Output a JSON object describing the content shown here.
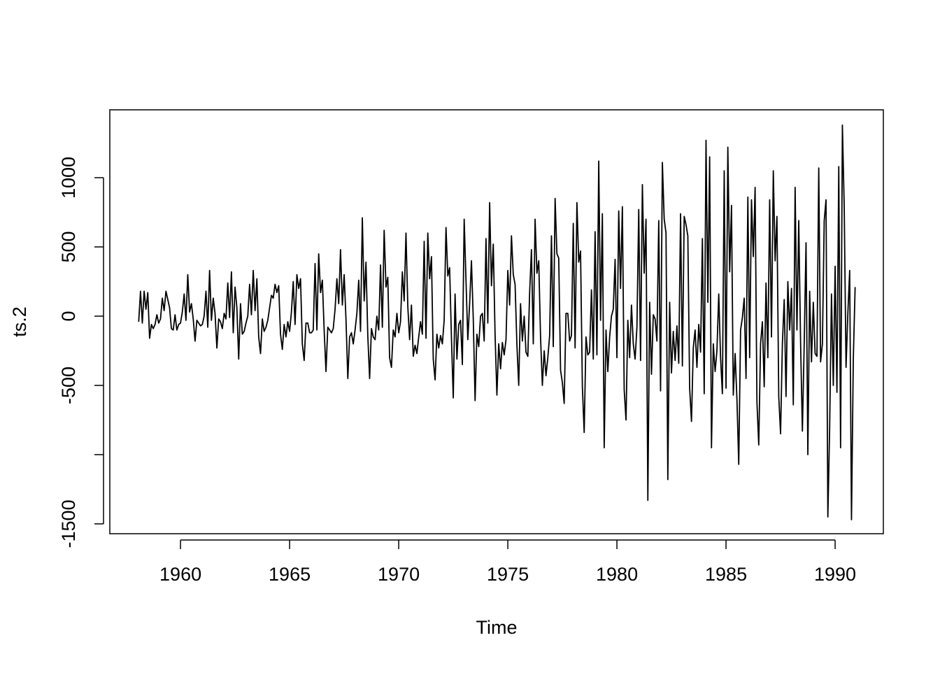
{
  "chart_data": {
    "type": "line",
    "x_label": "Time",
    "y_label": "ts.2",
    "color": "#000000",
    "xlim": [
      1956.76,
      1992.21
    ],
    "xticks": [
      1960,
      1965,
      1970,
      1975,
      1980,
      1985,
      1990
    ],
    "ylim": [
      -1571,
      1490
    ],
    "yticks": [
      -1500,
      {
        "value": -1000,
        "label": null
      },
      -500,
      0,
      500,
      1000
    ],
    "x": [
      1958.083,
      1958.167,
      1958.25,
      1958.333,
      1958.417,
      1958.5,
      1958.583,
      1958.667,
      1958.75,
      1958.833,
      1958.917,
      1959,
      1959.083,
      1959.167,
      1959.25,
      1959.333,
      1959.417,
      1959.5,
      1959.583,
      1959.667,
      1959.75,
      1959.833,
      1959.917,
      1960,
      1960.083,
      1960.167,
      1960.25,
      1960.333,
      1960.417,
      1960.5,
      1960.583,
      1960.667,
      1960.75,
      1960.833,
      1960.917,
      1961,
      1961.083,
      1961.167,
      1961.25,
      1961.333,
      1961.417,
      1961.5,
      1961.583,
      1961.667,
      1961.75,
      1961.833,
      1961.917,
      1962,
      1962.083,
      1962.167,
      1962.25,
      1962.333,
      1962.417,
      1962.5,
      1962.583,
      1962.667,
      1962.75,
      1962.833,
      1962.917,
      1963,
      1963.083,
      1963.167,
      1963.25,
      1963.333,
      1963.417,
      1963.5,
      1963.583,
      1963.667,
      1963.75,
      1963.833,
      1963.917,
      1964,
      1964.083,
      1964.167,
      1964.25,
      1964.333,
      1964.417,
      1964.5,
      1964.583,
      1964.667,
      1964.75,
      1964.833,
      1964.917,
      1965,
      1965.083,
      1965.167,
      1965.25,
      1965.333,
      1965.417,
      1965.5,
      1965.583,
      1965.667,
      1965.75,
      1965.833,
      1965.917,
      1966,
      1966.083,
      1966.167,
      1966.25,
      1966.333,
      1966.417,
      1966.5,
      1966.583,
      1966.667,
      1966.75,
      1966.833,
      1966.917,
      1967,
      1967.083,
      1967.167,
      1967.25,
      1967.333,
      1967.417,
      1967.5,
      1967.583,
      1967.667,
      1967.75,
      1967.833,
      1967.917,
      1968,
      1968.083,
      1968.167,
      1968.25,
      1968.333,
      1968.417,
      1968.5,
      1968.583,
      1968.667,
      1968.75,
      1968.833,
      1968.917,
      1969,
      1969.083,
      1969.167,
      1969.25,
      1969.333,
      1969.417,
      1969.5,
      1969.583,
      1969.667,
      1969.75,
      1969.833,
      1969.917,
      1970,
      1970.083,
      1970.167,
      1970.25,
      1970.333,
      1970.417,
      1970.5,
      1970.583,
      1970.667,
      1970.75,
      1970.833,
      1970.917,
      1971,
      1971.083,
      1971.167,
      1971.25,
      1971.333,
      1971.417,
      1971.5,
      1971.583,
      1971.667,
      1971.75,
      1971.833,
      1971.917,
      1972,
      1972.083,
      1972.167,
      1972.25,
      1972.333,
      1972.417,
      1972.5,
      1972.583,
      1972.667,
      1972.75,
      1972.833,
      1972.917,
      1973,
      1973.083,
      1973.167,
      1973.25,
      1973.333,
      1973.417,
      1973.5,
      1973.583,
      1973.667,
      1973.75,
      1973.833,
      1973.917,
      1974,
      1974.083,
      1974.167,
      1974.25,
      1974.333,
      1974.417,
      1974.5,
      1974.583,
      1974.667,
      1974.75,
      1974.833,
      1974.917,
      1975,
      1975.083,
      1975.167,
      1975.25,
      1975.333,
      1975.417,
      1975.5,
      1975.583,
      1975.667,
      1975.75,
      1975.833,
      1975.917,
      1976,
      1976.083,
      1976.167,
      1976.25,
      1976.333,
      1976.417,
      1976.5,
      1976.583,
      1976.667,
      1976.75,
      1976.833,
      1976.917,
      1977,
      1977.083,
      1977.167,
      1977.25,
      1977.333,
      1977.417,
      1977.5,
      1977.583,
      1977.667,
      1977.75,
      1977.833,
      1977.917,
      1978,
      1978.083,
      1978.167,
      1978.25,
      1978.333,
      1978.417,
      1978.5,
      1978.583,
      1978.667,
      1978.75,
      1978.833,
      1978.917,
      1979,
      1979.083,
      1979.167,
      1979.25,
      1979.333,
      1979.417,
      1979.5,
      1979.583,
      1979.667,
      1979.75,
      1979.833,
      1979.917,
      1980,
      1980.083,
      1980.167,
      1980.25,
      1980.333,
      1980.417,
      1980.5,
      1980.583,
      1980.667,
      1980.75,
      1980.833,
      1980.917,
      1981,
      1981.083,
      1981.167,
      1981.25,
      1981.333,
      1981.417,
      1981.5,
      1981.583,
      1981.667,
      1981.75,
      1981.833,
      1981.917,
      1982,
      1982.083,
      1982.167,
      1982.25,
      1982.333,
      1982.417,
      1982.5,
      1982.583,
      1982.667,
      1982.75,
      1982.833,
      1982.917,
      1983,
      1983.083,
      1983.167,
      1983.25,
      1983.333,
      1983.417,
      1983.5,
      1983.583,
      1983.667,
      1983.75,
      1983.833,
      1983.917,
      1984,
      1984.083,
      1984.167,
      1984.25,
      1984.333,
      1984.417,
      1984.5,
      1984.583,
      1984.667,
      1984.75,
      1984.833,
      1984.917,
      1985,
      1985.083,
      1985.167,
      1985.25,
      1985.333,
      1985.417,
      1985.5,
      1985.583,
      1985.667,
      1985.75,
      1985.833,
      1985.917,
      1986,
      1986.083,
      1986.167,
      1986.25,
      1986.333,
      1986.417,
      1986.5,
      1986.583,
      1986.667,
      1986.75,
      1986.833,
      1986.917,
      1987,
      1987.083,
      1987.167,
      1987.25,
      1987.333,
      1987.417,
      1987.5,
      1987.583,
      1987.667,
      1987.75,
      1987.833,
      1987.917,
      1988,
      1988.083,
      1988.167,
      1988.25,
      1988.333,
      1988.417,
      1988.5,
      1988.583,
      1988.667,
      1988.75,
      1988.833,
      1988.917,
      1989,
      1989.083,
      1989.167,
      1989.25,
      1989.333,
      1989.417,
      1989.5,
      1989.583,
      1989.667,
      1989.75,
      1989.833,
      1989.917,
      1990,
      1990.083,
      1990.167,
      1990.25,
      1990.333,
      1990.417,
      1990.5,
      1990.583,
      1990.667,
      1990.75,
      1990.833,
      1990.917
    ],
    "values": [
      -40,
      180,
      -50,
      180,
      50,
      170,
      -160,
      -60,
      -90,
      -60,
      10,
      -50,
      -20,
      130,
      40,
      180,
      120,
      60,
      -90,
      -100,
      10,
      -100,
      -60,
      -50,
      30,
      160,
      -30,
      300,
      30,
      90,
      -20,
      -180,
      -30,
      -50,
      -70,
      -60,
      0,
      180,
      -80,
      330,
      -30,
      130,
      20,
      -230,
      -20,
      -40,
      -90,
      20,
      -20,
      240,
      -10,
      320,
      -120,
      210,
      60,
      -310,
      90,
      -130,
      -110,
      -50,
      0,
      230,
      10,
      330,
      40,
      270,
      -150,
      -270,
      -20,
      -110,
      -80,
      -30,
      60,
      150,
      130,
      230,
      170,
      220,
      -130,
      -240,
      -60,
      -150,
      -40,
      -110,
      30,
      250,
      -60,
      300,
      200,
      270,
      -200,
      -320,
      -50,
      -50,
      -120,
      -120,
      -100,
      380,
      -100,
      450,
      170,
      260,
      -100,
      -400,
      -80,
      -100,
      -120,
      -90,
      50,
      270,
      90,
      480,
      80,
      300,
      -20,
      -450,
      -150,
      -120,
      -200,
      -100,
      20,
      260,
      -110,
      710,
      110,
      390,
      -140,
      -450,
      -90,
      -150,
      -170,
      0,
      -100,
      370,
      -80,
      620,
      210,
      280,
      -300,
      -370,
      -100,
      -150,
      20,
      -120,
      -40,
      320,
      110,
      600,
      70,
      -170,
      80,
      -290,
      -210,
      -270,
      -150,
      -40,
      -130,
      540,
      -160,
      600,
      270,
      430,
      -310,
      -460,
      -130,
      -230,
      -140,
      -200,
      -30,
      640,
      290,
      350,
      -160,
      -590,
      160,
      -310,
      -60,
      -30,
      -350,
      700,
      260,
      -170,
      90,
      400,
      -20,
      -610,
      -130,
      -220,
      0,
      20,
      -180,
      560,
      -50,
      820,
      220,
      520,
      -140,
      -570,
      -200,
      -380,
      -190,
      -280,
      -170,
      330,
      80,
      580,
      300,
      230,
      -210,
      -500,
      90,
      -180,
      0,
      -260,
      -290,
      170,
      480,
      -200,
      700,
      310,
      400,
      -150,
      -500,
      -250,
      -430,
      -300,
      -140,
      580,
      -220,
      850,
      450,
      420,
      -390,
      -480,
      -630,
      20,
      20,
      -180,
      -140,
      670,
      -230,
      820,
      390,
      470,
      -510,
      -840,
      -150,
      -280,
      -260,
      190,
      -310,
      610,
      -280,
      1120,
      -30,
      740,
      -950,
      -100,
      -400,
      -150,
      0,
      50,
      410,
      -300,
      760,
      200,
      790,
      -530,
      -750,
      -30,
      -300,
      80,
      -200,
      -310,
      -80,
      770,
      -320,
      950,
      310,
      700,
      -1330,
      100,
      -420,
      10,
      -20,
      -180,
      690,
      -540,
      1110,
      700,
      600,
      -1180,
      100,
      -410,
      -110,
      -320,
      -70,
      -340,
      740,
      -360,
      720,
      660,
      580,
      -520,
      -760,
      -230,
      -100,
      -370,
      -60,
      -260,
      560,
      -560,
      1270,
      100,
      1150,
      -950,
      -200,
      -400,
      -250,
      160,
      -300,
      -560,
      1050,
      -520,
      1220,
      320,
      800,
      -570,
      -270,
      -600,
      -1070,
      -100,
      -10,
      130,
      -450,
      860,
      -300,
      840,
      430,
      930,
      -620,
      -930,
      -200,
      -40,
      -510,
      240,
      -300,
      840,
      -150,
      1050,
      400,
      720,
      -580,
      -850,
      -200,
      120,
      -580,
      250,
      -100,
      200,
      -640,
      930,
      -100,
      690,
      -190,
      -830,
      -200,
      530,
      -1000,
      180,
      -330,
      100,
      -270,
      -290,
      1070,
      -330,
      -200,
      690,
      840,
      -1450,
      -800,
      160,
      -500,
      360,
      -550,
      1080,
      -950,
      1380,
      790,
      -370,
      20,
      330,
      -1470,
      -310,
      210
    ]
  }
}
